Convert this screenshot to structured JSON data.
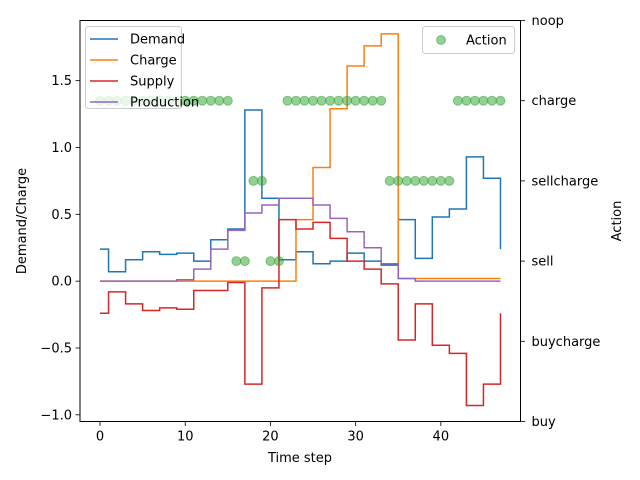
{
  "chart_data": {
    "type": "line",
    "xlabel": "Time step",
    "ylabel_left": "Demand/Charge",
    "ylabel_right": "Action",
    "xlim": [
      -2.35,
      49.35
    ],
    "ylim_left": [
      -1.05,
      1.95
    ],
    "ylim_right": [
      0,
      5
    ],
    "x_ticks": [
      0,
      10,
      20,
      30,
      40
    ],
    "y_ticks_left": [
      -1.0,
      -0.5,
      0.0,
      0.5,
      1.0,
      1.5
    ],
    "y_tick_labels_left": [
      "−1.0",
      "−0.5",
      "0.0",
      "0.5",
      "1.0",
      "1.5"
    ],
    "y_ticks_right": [
      0,
      1,
      2,
      3,
      4,
      5
    ],
    "y_tick_labels_right": [
      "buy",
      "buycharge",
      "sell",
      "sellcharge",
      "charge",
      "noop"
    ],
    "drawstyle": "steps-post",
    "x": [
      0,
      1,
      2,
      3,
      4,
      5,
      6,
      7,
      8,
      9,
      10,
      11,
      12,
      13,
      14,
      15,
      16,
      17,
      18,
      19,
      20,
      21,
      22,
      23,
      24,
      25,
      26,
      27,
      28,
      29,
      30,
      31,
      32,
      33,
      34,
      35,
      36,
      37,
      38,
      39,
      40,
      41,
      42,
      43,
      44,
      45,
      46,
      47
    ],
    "series": [
      {
        "name": "Demand",
        "color": "#1f77b4",
        "values": [
          0.24,
          0.07,
          0.07,
          0.16,
          0.16,
          0.22,
          0.22,
          0.2,
          0.2,
          0.21,
          0.21,
          0.15,
          0.15,
          0.31,
          0.31,
          0.39,
          0.39,
          1.28,
          1.28,
          0.62,
          0.62,
          0.16,
          0.16,
          0.22,
          0.22,
          0.13,
          0.13,
          0.15,
          0.15,
          0.21,
          0.21,
          0.15,
          0.15,
          0.12,
          0.12,
          0.46,
          0.46,
          0.17,
          0.17,
          0.48,
          0.48,
          0.54,
          0.54,
          0.93,
          0.93,
          0.77,
          0.77,
          0.24
        ]
      },
      {
        "name": "Charge",
        "color": "#ff7f0e",
        "values": [
          0,
          0,
          0,
          0,
          0,
          0,
          0,
          0,
          0,
          0,
          0,
          0,
          0,
          0,
          0,
          0,
          0,
          0,
          0,
          0,
          0,
          0,
          0,
          0.46,
          0.46,
          0.85,
          0.85,
          1.29,
          1.29,
          1.61,
          1.61,
          1.76,
          1.76,
          1.85,
          1.85,
          0.02,
          0.02,
          0.02,
          0.02,
          0.02,
          0.02,
          0.02,
          0.02,
          0.02,
          0.02,
          0.02,
          0.02,
          0.02
        ]
      },
      {
        "name": "Supply",
        "color": "#d62728",
        "values": [
          -0.24,
          -0.08,
          -0.08,
          -0.17,
          -0.17,
          -0.22,
          -0.22,
          -0.2,
          -0.2,
          -0.21,
          -0.21,
          -0.07,
          -0.07,
          -0.07,
          -0.07,
          -0.01,
          -0.01,
          -0.77,
          -0.77,
          -0.05,
          -0.05,
          0.46,
          0.46,
          0.39,
          0.39,
          0.44,
          0.44,
          0.32,
          0.32,
          0.15,
          0.15,
          0.09,
          0.09,
          -0.02,
          -0.02,
          -0.44,
          -0.44,
          -0.17,
          -0.17,
          -0.48,
          -0.48,
          -0.54,
          -0.54,
          -0.93,
          -0.93,
          -0.77,
          -0.77,
          -0.24
        ]
      },
      {
        "name": "Production",
        "color": "#9467bd",
        "values": [
          0,
          0,
          0,
          0,
          0,
          0,
          0,
          0,
          0,
          0.01,
          0.01,
          0.09,
          0.09,
          0.24,
          0.24,
          0.38,
          0.38,
          0.51,
          0.51,
          0.57,
          0.57,
          0.62,
          0.62,
          0.62,
          0.62,
          0.57,
          0.57,
          0.47,
          0.47,
          0.37,
          0.37,
          0.25,
          0.25,
          0.13,
          0.13,
          0.02,
          0.02,
          0,
          0,
          0,
          0,
          0,
          0,
          0,
          0,
          0,
          0,
          0
        ]
      }
    ],
    "action_series": {
      "name": "Action",
      "color": "#2ca02c",
      "values": [
        4,
        4,
        4,
        4,
        4,
        4,
        4,
        4,
        4,
        4,
        4,
        4,
        4,
        4,
        4,
        4,
        2,
        2,
        3,
        3,
        2,
        2,
        4,
        4,
        4,
        4,
        4,
        4,
        4,
        4,
        4,
        4,
        4,
        4,
        3,
        3,
        3,
        3,
        3,
        3,
        3,
        3,
        4,
        4,
        4,
        4,
        4,
        4
      ]
    },
    "legend_left_position": "upper-left",
    "legend_right_position": "upper-right",
    "grid": false
  }
}
